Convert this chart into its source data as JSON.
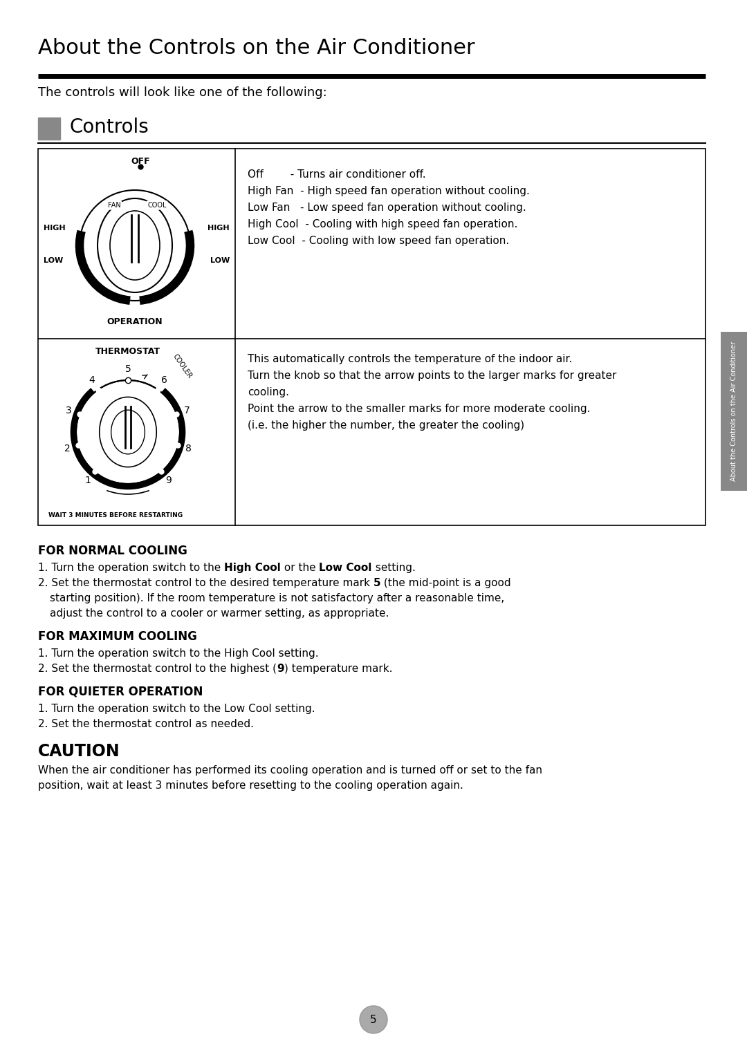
{
  "title": "About the Controls on the Air Conditioner",
  "subtitle": "The controls will look like one of the following:",
  "section_header": "Controls",
  "bg_color": "#ffffff",
  "text_color": "#000000",
  "page_number": "5",
  "operation_descriptions": [
    "Off        - Turns air conditioner off.",
    "High Fan  - High speed fan operation without cooling.",
    "Low Fan   - Low speed fan operation without cooling.",
    "High Cool  - Cooling with high speed fan operation.",
    "Low Cool  - Cooling with low speed fan operation."
  ],
  "thermostat_description": [
    "This automatically controls the temperature of the indoor air.",
    "Turn the knob so that the arrow points to the larger marks for greater",
    "cooling.",
    "Point the arrow to the smaller marks for more moderate cooling.",
    "(i.e. the higher the number, the greater the cooling)"
  ],
  "section_normal": "FOR NORMAL COOLING",
  "normal_lines": [
    [
      "1. Turn the operation switch to the ",
      "High Cool",
      " or the ",
      "Low Cool",
      " setting."
    ],
    [
      "2. Set the thermostat control to the desired temperature mark ",
      "5",
      " (the mid-point is a good"
    ],
    [
      "   starting position). If the room temperature is not satisfactory after a reasonable time,"
    ],
    [
      "   adjust the control to a cooler or warmer setting, as appropriate."
    ]
  ],
  "section_max": "FOR MAXIMUM COOLING",
  "max_lines": [
    [
      "1. Turn the operation switch to the High Cool setting."
    ],
    [
      "2. Set the thermostat control to the highest (",
      "9",
      ") temperature mark."
    ]
  ],
  "section_quieter": "FOR QUIETER OPERATION",
  "quieter_lines": [
    [
      "1. Turn the operation switch to the Low Cool setting."
    ],
    [
      "2. Set the thermostat control as needed."
    ]
  ],
  "caution_header": "CAUTION",
  "caution_text": [
    "When the air conditioner has performed its cooling operation and is turned off or set to the fan",
    "position, wait at least 3 minutes before resetting to the cooling operation again."
  ],
  "sidebar_text": "About the Controls on the Air Conditioner",
  "sidebar_color": "#888888"
}
